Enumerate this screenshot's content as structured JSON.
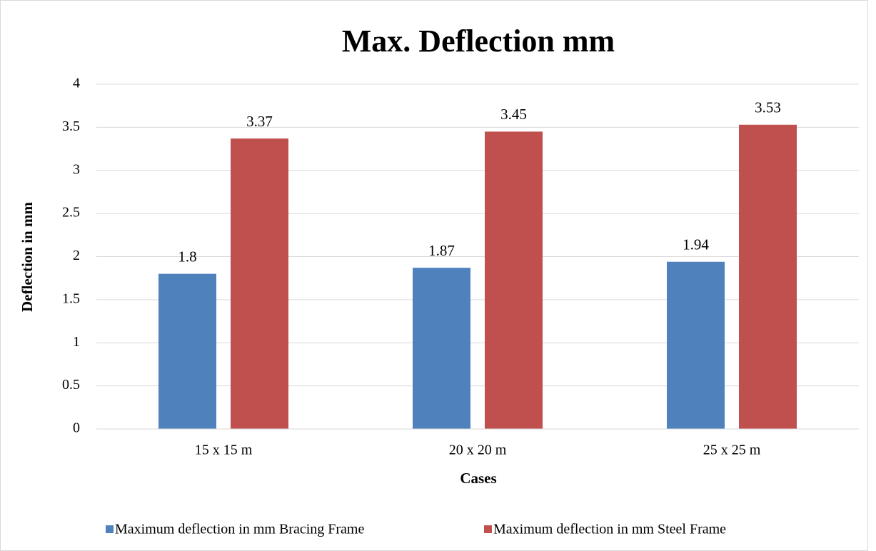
{
  "chart_data": {
    "type": "bar",
    "title": "Max. Deflection mm",
    "xlabel": "Cases",
    "ylabel": "Deflection in mm",
    "categories": [
      "15 x 15 m",
      "20 x 20 m",
      "25 x 25 m"
    ],
    "series": [
      {
        "name": "Maximum deflection in mm Bracing Frame",
        "color": "#4f81bd",
        "values": [
          1.8,
          1.87,
          1.94
        ]
      },
      {
        "name": "Maximum deflection in mm Steel Frame",
        "color": "#c0504d",
        "values": [
          3.37,
          3.45,
          3.53
        ]
      }
    ],
    "ylim": [
      0,
      4
    ],
    "yticks": [
      0,
      0.5,
      1,
      1.5,
      2,
      2.5,
      3,
      3.5,
      4
    ],
    "grid": true,
    "legend": "bottom"
  }
}
